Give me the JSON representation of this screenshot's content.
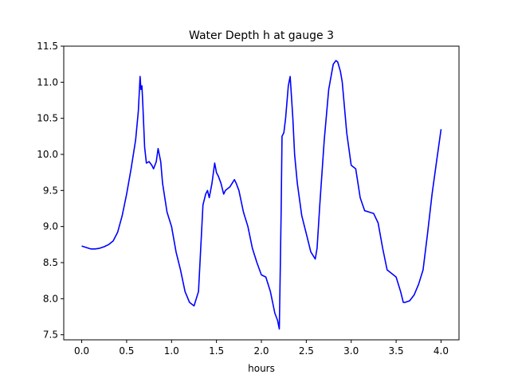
{
  "chart_data": {
    "type": "line",
    "title": "Water Depth h at gauge 3",
    "xlabel": "hours",
    "ylabel": "",
    "xlim": [
      -0.2,
      4.2
    ],
    "ylim": [
      7.43,
      11.5
    ],
    "x_ticks": [
      0.0,
      0.5,
      1.0,
      1.5,
      2.0,
      2.5,
      3.0,
      3.5,
      4.0
    ],
    "x_tick_labels": [
      "0.0",
      "0.5",
      "1.0",
      "1.5",
      "2.0",
      "2.5",
      "3.0",
      "3.5",
      "4.0"
    ],
    "y_ticks": [
      7.5,
      8.0,
      8.5,
      9.0,
      9.5,
      10.0,
      10.5,
      11.0,
      11.5
    ],
    "y_tick_labels": [
      "7.5",
      "8.0",
      "8.5",
      "9.0",
      "9.5",
      "10.0",
      "10.5",
      "11.0",
      "11.5"
    ],
    "grid": false,
    "series": [
      {
        "color": "#0000ff",
        "x": [
          0.0,
          0.05,
          0.1,
          0.15,
          0.2,
          0.25,
          0.3,
          0.35,
          0.4,
          0.45,
          0.5,
          0.55,
          0.6,
          0.63,
          0.65,
          0.66,
          0.67,
          0.68,
          0.7,
          0.72,
          0.75,
          0.78,
          0.8,
          0.83,
          0.85,
          0.88,
          0.9,
          0.95,
          1.0,
          1.05,
          1.1,
          1.15,
          1.2,
          1.25,
          1.3,
          1.35,
          1.38,
          1.4,
          1.42,
          1.45,
          1.48,
          1.5,
          1.52,
          1.55,
          1.58,
          1.6,
          1.65,
          1.7,
          1.72,
          1.75,
          1.8,
          1.85,
          1.9,
          1.95,
          2.0,
          2.05,
          2.1,
          2.15,
          2.18,
          2.2,
          2.21,
          2.22,
          2.23,
          2.25,
          2.27,
          2.3,
          2.32,
          2.33,
          2.35,
          2.37,
          2.4,
          2.45,
          2.5,
          2.55,
          2.6,
          2.62,
          2.65,
          2.7,
          2.75,
          2.8,
          2.83,
          2.85,
          2.88,
          2.9,
          2.95,
          3.0,
          3.05,
          3.1,
          3.15,
          3.2,
          3.25,
          3.3,
          3.35,
          3.4,
          3.45,
          3.5,
          3.55,
          3.58,
          3.6,
          3.65,
          3.7,
          3.75,
          3.8,
          3.85,
          3.9,
          3.95,
          4.0
        ],
        "y": [
          8.73,
          8.71,
          8.69,
          8.69,
          8.7,
          8.72,
          8.75,
          8.8,
          8.92,
          9.15,
          9.45,
          9.8,
          10.2,
          10.6,
          11.08,
          10.9,
          10.95,
          10.7,
          10.1,
          9.88,
          9.9,
          9.85,
          9.8,
          9.9,
          10.08,
          9.9,
          9.6,
          9.2,
          9.0,
          8.65,
          8.4,
          8.1,
          7.95,
          7.9,
          8.1,
          9.3,
          9.45,
          9.5,
          9.4,
          9.6,
          9.88,
          9.75,
          9.7,
          9.6,
          9.45,
          9.5,
          9.55,
          9.65,
          9.6,
          9.5,
          9.2,
          9.0,
          8.7,
          8.5,
          8.33,
          8.3,
          8.1,
          7.8,
          7.7,
          7.58,
          8.4,
          9.2,
          10.25,
          10.3,
          10.5,
          10.95,
          11.08,
          10.9,
          10.5,
          10.0,
          9.6,
          9.15,
          8.9,
          8.65,
          8.55,
          8.7,
          9.3,
          10.2,
          10.9,
          11.25,
          11.3,
          11.28,
          11.15,
          11.0,
          10.3,
          9.85,
          9.8,
          9.4,
          9.22,
          9.2,
          9.18,
          9.05,
          8.7,
          8.4,
          8.35,
          8.3,
          8.1,
          7.95,
          7.95,
          7.97,
          8.05,
          8.2,
          8.4,
          8.9,
          9.45,
          9.9,
          10.35
        ]
      }
    ]
  }
}
